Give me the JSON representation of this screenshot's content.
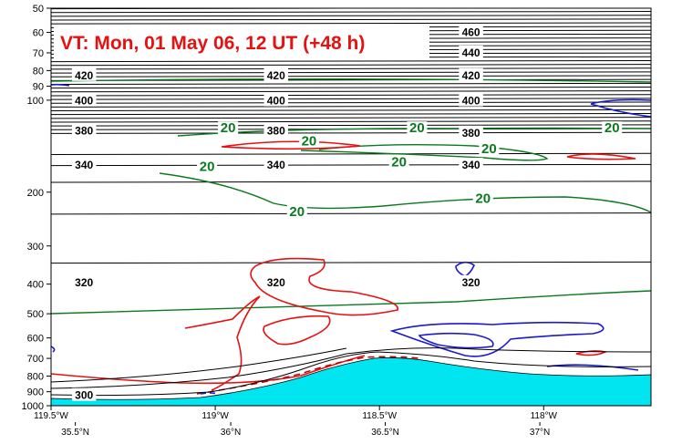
{
  "chart_data": {
    "type": "cross-section",
    "title": "VT:  Mon, 01 May 06, 12 UT (+48 h)",
    "y_axis": {
      "scale": "log",
      "inverted": true,
      "range": [
        1000,
        50
      ],
      "ticks": [
        50,
        60,
        70,
        80,
        90,
        100,
        200,
        300,
        400,
        500,
        600,
        700,
        800,
        900,
        1000
      ]
    },
    "x_axis": {
      "range": [
        0,
        1
      ],
      "lon_ticks": [
        {
          "pos": 0.0,
          "label": "119.5°W"
        },
        {
          "pos": 0.2737,
          "label": "119°W"
        },
        {
          "pos": 0.5474,
          "label": "118.5°W"
        },
        {
          "pos": 0.8211,
          "label": "118°W"
        }
      ],
      "lat_ticks": [
        {
          "pos": 0.0405,
          "label": "35.5°N"
        },
        {
          "pos": 0.2995,
          "label": "36°N"
        },
        {
          "pos": 0.5571,
          "label": "36.5°N"
        },
        {
          "pos": 0.8147,
          "label": "37°N"
        }
      ]
    },
    "theta_labels": [
      {
        "x": 0.055,
        "p": 925,
        "text": "300"
      },
      {
        "x": 0.055,
        "p": 395,
        "text": "320"
      },
      {
        "x": 0.375,
        "p": 395,
        "text": "320"
      },
      {
        "x": 0.7,
        "p": 395,
        "text": "320"
      },
      {
        "x": 0.055,
        "p": 163,
        "text": "340"
      },
      {
        "x": 0.375,
        "p": 163,
        "text": "340"
      },
      {
        "x": 0.7,
        "p": 163,
        "text": "340"
      },
      {
        "x": 0.055,
        "p": 126,
        "text": "380"
      },
      {
        "x": 0.375,
        "p": 126,
        "text": "380"
      },
      {
        "x": 0.7,
        "p": 128,
        "text": "380"
      },
      {
        "x": 0.055,
        "p": 100.5,
        "text": "400"
      },
      {
        "x": 0.375,
        "p": 100.5,
        "text": "400"
      },
      {
        "x": 0.7,
        "p": 100.5,
        "text": "400"
      },
      {
        "x": 0.055,
        "p": 83,
        "text": "420"
      },
      {
        "x": 0.375,
        "p": 83,
        "text": "420"
      },
      {
        "x": 0.7,
        "p": 83,
        "text": "420"
      },
      {
        "x": 0.7,
        "p": 70,
        "text": "440"
      },
      {
        "x": 0.7,
        "p": 60,
        "text": "460"
      }
    ],
    "wind_speed_labels": [
      {
        "x": 0.295,
        "p": 124,
        "text": "20"
      },
      {
        "x": 0.43,
        "p": 137,
        "text": "20"
      },
      {
        "x": 0.61,
        "p": 124,
        "text": "20"
      },
      {
        "x": 0.935,
        "p": 124,
        "text": "20"
      },
      {
        "x": 0.73,
        "p": 145,
        "text": "20"
      },
      {
        "x": 0.26,
        "p": 166,
        "text": "20"
      },
      {
        "x": 0.58,
        "p": 160,
        "text": "20"
      },
      {
        "x": 0.41,
        "p": 233,
        "text": "20"
      },
      {
        "x": 0.72,
        "p": 211,
        "text": "20"
      }
    ],
    "colors": {
      "theta": "#000000",
      "wind_speed": "#0a7a1e",
      "vertical_motion_up": "#e51212",
      "vertical_motion_dashed": "#c00000",
      "vertical_motion_down": "#1a1acc",
      "terrain": "#00e5f0",
      "title": "#e51212"
    }
  }
}
